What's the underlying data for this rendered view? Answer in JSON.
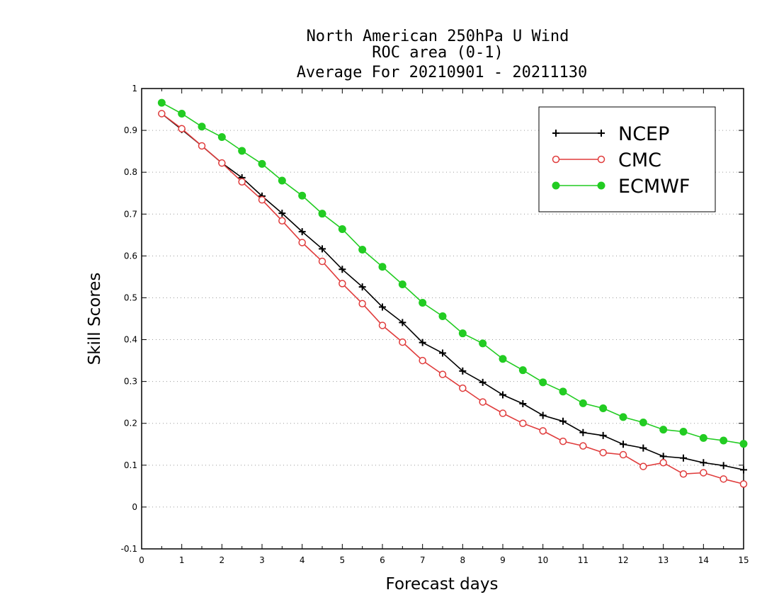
{
  "chart_data": {
    "type": "line",
    "title": "North American 250hPa U Wind",
    "subtitle": "ROC area (0-1)",
    "subtitle2": "Average For 20210901 - 20211130",
    "xlabel": "Forecast days",
    "ylabel": "Skill Scores",
    "xlim": [
      0,
      15
    ],
    "ylim": [
      -0.1,
      1
    ],
    "xticks": [
      "0",
      "1",
      "2",
      "3",
      "4",
      "5",
      "6",
      "7",
      "8",
      "9",
      "10",
      "11",
      "12",
      "13",
      "14",
      "15"
    ],
    "yticks": [
      "-0.1",
      "0",
      "0.1",
      "0.2",
      "0.3",
      "0.4",
      "0.5",
      "0.6",
      "0.7",
      "0.8",
      "0.9",
      "1"
    ],
    "grid": "horizontal dotted",
    "legend_position": "top-right",
    "x": [
      0.5,
      1,
      1.5,
      2,
      2.5,
      3,
      3.5,
      4,
      4.5,
      5,
      5.5,
      6,
      6.5,
      7,
      7.5,
      8,
      8.5,
      9,
      9.5,
      10,
      10.5,
      11,
      11.5,
      12,
      12.5,
      13,
      13.5,
      14,
      14.5,
      15
    ],
    "series": [
      {
        "name": "NCEP",
        "color": "#000000",
        "marker": "plus",
        "values": [
          0.94,
          0.902,
          0.863,
          0.822,
          0.787,
          0.743,
          0.702,
          0.658,
          0.617,
          0.568,
          0.526,
          0.478,
          0.441,
          0.393,
          0.368,
          0.325,
          0.298,
          0.268,
          0.247,
          0.219,
          0.205,
          0.178,
          0.171,
          0.15,
          0.141,
          0.121,
          0.117,
          0.106,
          0.099,
          0.089
        ]
      },
      {
        "name": "CMC",
        "color": "#e03c3c",
        "marker": "open-circle",
        "values": [
          0.94,
          0.904,
          0.863,
          0.822,
          0.777,
          0.734,
          0.684,
          0.632,
          0.587,
          0.534,
          0.486,
          0.434,
          0.394,
          0.35,
          0.317,
          0.284,
          0.251,
          0.224,
          0.2,
          0.182,
          0.157,
          0.146,
          0.13,
          0.125,
          0.097,
          0.106,
          0.079,
          0.082,
          0.067,
          0.055
        ]
      },
      {
        "name": "ECMWF",
        "color": "#22cc22",
        "marker": "filled-circle",
        "values": [
          0.966,
          0.94,
          0.909,
          0.884,
          0.851,
          0.82,
          0.78,
          0.744,
          0.701,
          0.664,
          0.615,
          0.574,
          0.532,
          0.488,
          0.456,
          0.415,
          0.391,
          0.354,
          0.327,
          0.298,
          0.276,
          0.248,
          0.236,
          0.215,
          0.202,
          0.185,
          0.18,
          0.165,
          0.159,
          0.151
        ]
      }
    ]
  }
}
